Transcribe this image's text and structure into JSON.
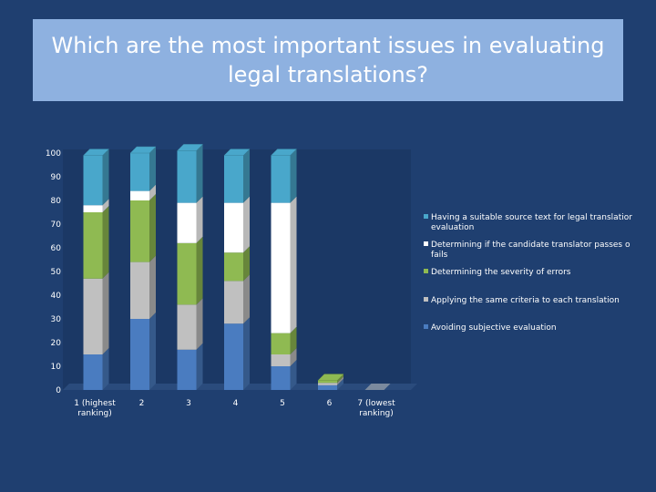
{
  "chart_data": {
    "type": "bar",
    "stacked": true,
    "title": "Which are the most important issues in evaluating legal translations?",
    "categories": [
      [
        "1 (highest",
        "ranking)"
      ],
      [
        "2"
      ],
      [
        "3"
      ],
      [
        "4"
      ],
      [
        "5"
      ],
      [
        "6"
      ],
      [
        "7 (lowest",
        "ranking)"
      ]
    ],
    "ylim": [
      0,
      100
    ],
    "yticks": [
      "0",
      "10",
      "20",
      "30",
      "40",
      "50",
      "60",
      "70",
      "80",
      "90",
      "100"
    ],
    "series": [
      {
        "name": "Avoiding subjective evaluation",
        "color": "#4a7cc0",
        "legend": [
          "Avoiding subjective evaluation"
        ],
        "values": [
          15,
          30,
          17,
          28,
          10,
          2,
          0
        ]
      },
      {
        "name": "Applying the same criteria to each translation",
        "color": "#c0c0c0",
        "legend": [
          "Applying the same criteria to each translation"
        ],
        "values": [
          32,
          24,
          19,
          18,
          5,
          1,
          0
        ]
      },
      {
        "name": "Determining the severity of errors",
        "color": "#8fba52",
        "legend": [
          "Determining the severity of errors"
        ],
        "values": [
          28,
          26,
          26,
          12,
          9,
          1,
          0
        ]
      },
      {
        "name": "Determining if the candidate translator passes or fails",
        "color": "#ffffff",
        "legend": [
          "Determining if the candidate translator passes o",
          "fails"
        ],
        "values": [
          3,
          4,
          17,
          21,
          55,
          0,
          0
        ]
      },
      {
        "name": "Having a suitable source text for legal translation evaluation",
        "color": "#49a7cb",
        "legend": [
          "Having a suitable source text for legal translatior",
          "evaluation"
        ],
        "values": [
          21,
          16,
          22,
          20,
          20,
          0,
          0
        ]
      }
    ]
  }
}
